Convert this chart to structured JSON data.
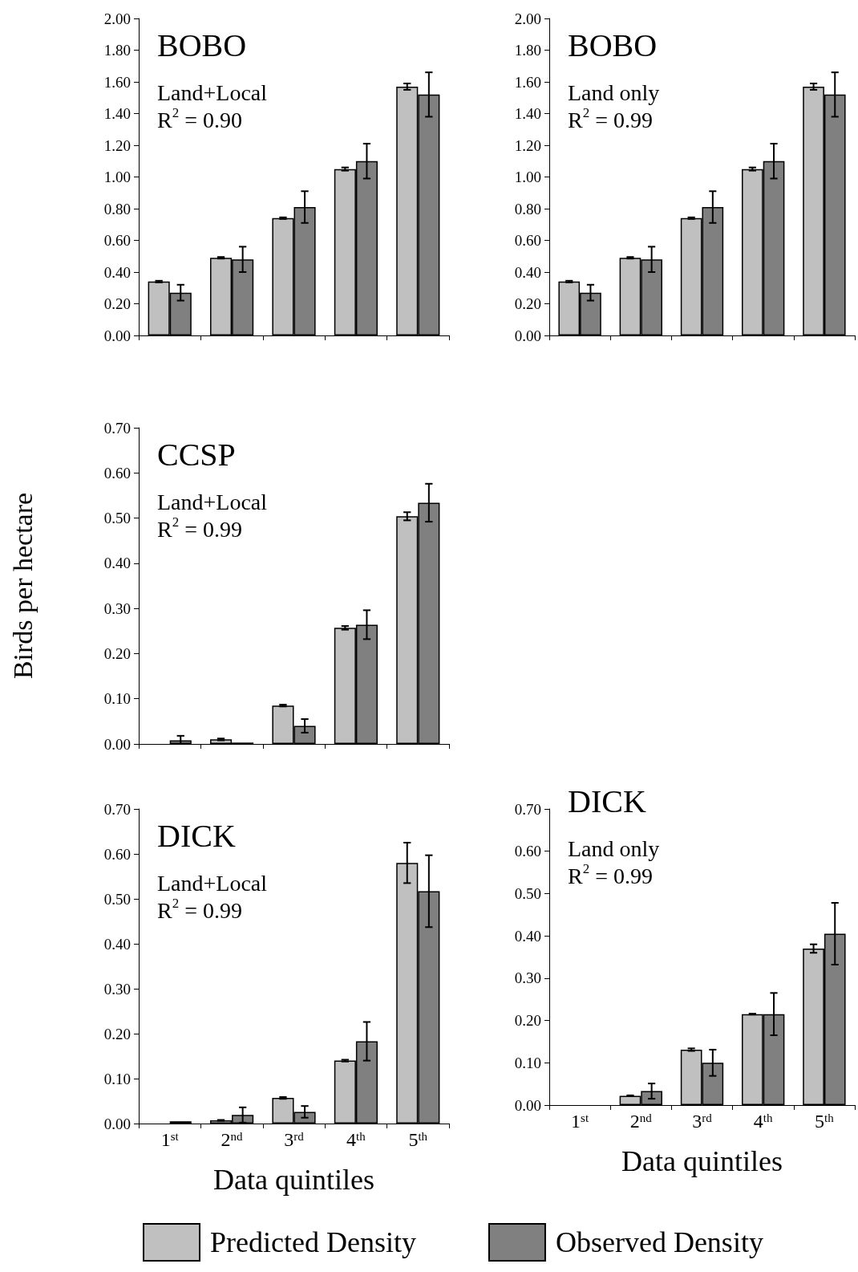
{
  "chart_data": [
    {
      "type": "bar",
      "title": "BOBO",
      "subtitle": "Land+Local\nR$^{2}$ = 0.90",
      "categories": [
        null,
        null,
        null,
        null,
        null
      ],
      "series": [
        {
          "color": "#c0c0c0",
          "values": [
            0.34,
            0.49,
            0.74,
            1.05,
            1.57
          ],
          "errors": [
            0.005,
            0.005,
            0.005,
            0.01,
            0.02
          ]
        },
        {
          "color": "#808080",
          "values": [
            0.27,
            0.48,
            0.81,
            1.1,
            1.52
          ],
          "errors": [
            0.05,
            0.08,
            0.1,
            0.11,
            0.14
          ]
        }
      ],
      "ylim": [
        0,
        2
      ],
      "yticks": [
        {
          "value": 0,
          "label": "0.00"
        },
        {
          "value": 0.2,
          "label": "0.20"
        },
        {
          "value": 0.4,
          "label": "0.40"
        },
        {
          "value": 0.6,
          "label": "0.60"
        },
        {
          "value": 0.8,
          "label": "0.80"
        },
        {
          "value": 1,
          "label": "1.00"
        },
        {
          "value": 1.2,
          "label": "1.20"
        },
        {
          "value": 1.4,
          "label": "1.40"
        },
        {
          "value": 1.6,
          "label": "1.60"
        },
        {
          "value": 1.8,
          "label": "1.80"
        },
        {
          "value": 2,
          "label": "2.00"
        }
      ],
      "tick_labels": "y",
      "grid": false,
      "legend": false
    },
    {
      "type": "bar",
      "title": "BOBO",
      "subtitle": "Land only\nR$^{2}$ = 0.99",
      "categories": [
        null,
        null,
        null,
        null,
        null
      ],
      "series": [
        {
          "color": "#c0c0c0",
          "values": [
            0.34,
            0.49,
            0.74,
            1.05,
            1.57
          ],
          "errors": [
            0.005,
            0.005,
            0.005,
            0.01,
            0.02
          ]
        },
        {
          "color": "#808080",
          "values": [
            0.27,
            0.48,
            0.81,
            1.1,
            1.52
          ],
          "errors": [
            0.05,
            0.08,
            0.1,
            0.11,
            0.14
          ]
        }
      ],
      "ylim": [
        0,
        2
      ],
      "yticks": [
        {
          "value": 0,
          "label": "0.00"
        },
        {
          "value": 0.2,
          "label": "0.20"
        },
        {
          "value": 0.4,
          "label": "0.40"
        },
        {
          "value": 0.6,
          "label": "0.60"
        },
        {
          "value": 0.8,
          "label": "0.80"
        },
        {
          "value": 1,
          "label": "1.00"
        },
        {
          "value": 1.2,
          "label": "1.20"
        },
        {
          "value": 1.4,
          "label": "1.40"
        },
        {
          "value": 1.6,
          "label": "1.60"
        },
        {
          "value": 1.8,
          "label": "1.80"
        },
        {
          "value": 2,
          "label": "2.00"
        }
      ],
      "tick_labels": "y",
      "grid": false,
      "legend": false
    },
    {
      "type": "bar",
      "title": "CCSP",
      "subtitle": "Land+Local\nR$^{2}$ = 0.99",
      "ylabel": "Birds per hectare",
      "categories": [
        null,
        null,
        null,
        null,
        null
      ],
      "series": [
        {
          "color": "#c0c0c0",
          "values": [
            null,
            0.01,
            0.085,
            0.257,
            0.504
          ],
          "errors": [
            null,
            0.002,
            0.002,
            0.004,
            0.009
          ]
        },
        {
          "color": "#808080",
          "values": [
            0.008,
            0.003,
            0.04,
            0.264,
            0.534
          ],
          "errors": [
            [
              0,
              0.018
            ],
            null,
            0.015,
            0.032,
            0.042
          ]
        }
      ],
      "ylim": [
        0,
        0.7
      ],
      "yticks": [
        {
          "value": 0,
          "label": "0.00"
        },
        {
          "value": 0.1,
          "label": "0.10"
        },
        {
          "value": 0.2,
          "label": "0.20"
        },
        {
          "value": 0.3,
          "label": "0.30"
        },
        {
          "value": 0.4,
          "label": "0.40"
        },
        {
          "value": 0.5,
          "label": "0.50"
        },
        {
          "value": 0.6,
          "label": "0.60"
        },
        {
          "value": 0.7,
          "label": "0.70"
        }
      ],
      "tick_labels": "y",
      "grid": false,
      "legend": false
    },
    {
      "type": "bar",
      "title": "DICK",
      "subtitle": "Land+Local\nR$^{2}$ = 0.99",
      "xlabel": "Data quintiles",
      "categories": [
        "1$^{st}$",
        "2$^{nd}$",
        "3$^{rd}$",
        "4$^{th}$",
        "5$^{th}$"
      ],
      "series": [
        {
          "name": "Predicted Density",
          "color": "#c0c0c0",
          "values": [
            null,
            0.007,
            0.057,
            0.14,
            0.58
          ],
          "errors": [
            null,
            0.001,
            0.002,
            0.002,
            0.045
          ]
        },
        {
          "name": "Observed Density",
          "color": "#808080",
          "values": [
            0.005,
            0.019,
            0.026,
            0.183,
            0.517
          ],
          "errors": [
            null,
            0.017,
            0.013,
            0.043,
            0.08
          ]
        }
      ],
      "ylim": [
        0,
        0.7
      ],
      "yticks": [
        {
          "value": 0,
          "label": "0.00"
        },
        {
          "value": 0.1,
          "label": "0.10"
        },
        {
          "value": 0.2,
          "label": "0.20"
        },
        {
          "value": 0.3,
          "label": "0.30"
        },
        {
          "value": 0.4,
          "label": "0.40"
        },
        {
          "value": 0.5,
          "label": "0.50"
        },
        {
          "value": 0.6,
          "label": "0.60"
        },
        {
          "value": 0.7,
          "label": "0.70"
        }
      ],
      "grid": false,
      "legend": "bottom"
    },
    {
      "type": "bar",
      "title": "DICK",
      "subtitle": "Land only\nR$^{2}$ = 0.99",
      "xlabel": "Data quintiles",
      "categories": [
        "1$^{st}$",
        "2$^{nd}$",
        "3$^{rd}$",
        "4$^{th}$",
        "5$^{th}$"
      ],
      "series": [
        {
          "color": "#c0c0c0",
          "values": [
            null,
            0.022,
            0.131,
            0.215,
            0.37
          ],
          "errors": [
            null,
            0.001,
            0.003,
            0.001,
            0.01
          ]
        },
        {
          "color": "#808080",
          "values": [
            null,
            0.033,
            0.1,
            0.215,
            0.405
          ],
          "errors": [
            null,
            0.018,
            0.031,
            0.05,
            0.073
          ]
        }
      ],
      "ylim": [
        0,
        0.7
      ],
      "yticks": [
        {
          "value": 0,
          "label": "0.00"
        },
        {
          "value": 0.1,
          "label": "0.10"
        },
        {
          "value": 0.2,
          "label": "0.20"
        },
        {
          "value": 0.3,
          "label": "0.30"
        },
        {
          "value": 0.4,
          "label": "0.40"
        },
        {
          "value": 0.5,
          "label": "0.50"
        },
        {
          "value": 0.6,
          "label": "0.60"
        },
        {
          "value": 0.7,
          "label": "0.70"
        }
      ],
      "grid": false,
      "legend": false
    }
  ]
}
